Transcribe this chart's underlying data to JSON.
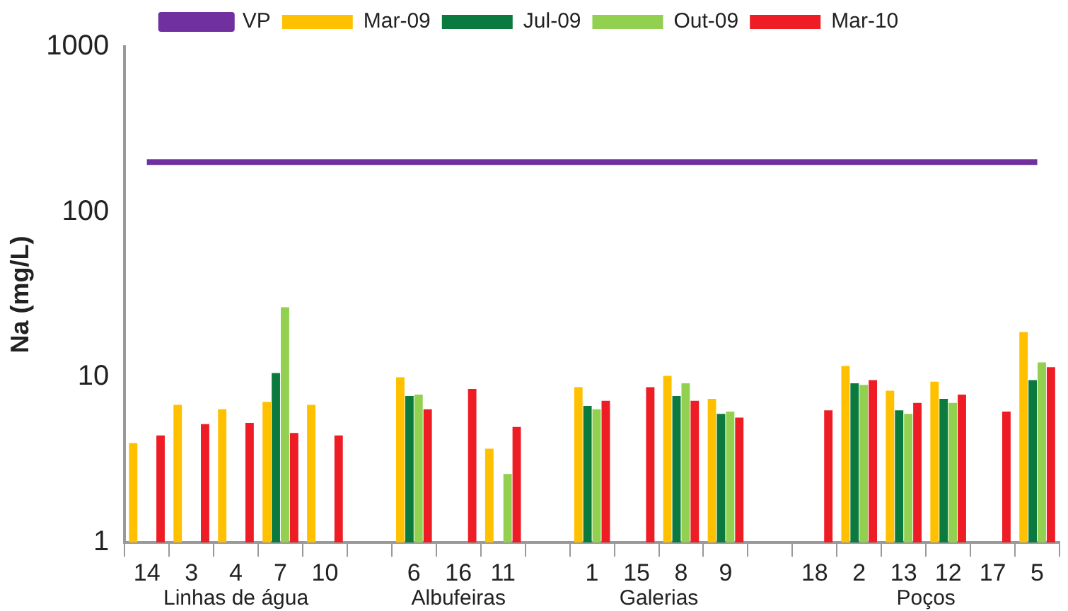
{
  "chart_data": {
    "type": "bar",
    "ylabel": "Na (mg/L)",
    "log": true,
    "ylim": [
      1,
      1000
    ],
    "yticks": [
      1,
      10,
      100,
      1000
    ],
    "legend": "top",
    "categories": [
      "14",
      "3",
      "4",
      "7",
      "10",
      null,
      "6",
      "16",
      "11",
      null,
      "1",
      "15",
      "8",
      "9",
      null,
      "18",
      "2",
      "13",
      "12",
      "17",
      "5"
    ],
    "series": [
      {
        "name": "Mar-09",
        "color": "#ffc000",
        "values": [
          4.0,
          6.8,
          6.4,
          7.1,
          6.8,
          null,
          10.0,
          null,
          3.7,
          null,
          8.7,
          null,
          10.2,
          7.4,
          null,
          null,
          11.7,
          8.3,
          9.4,
          null,
          18.8
        ]
      },
      {
        "name": "Jul-09",
        "color": "#0b7a3e",
        "values": [
          null,
          null,
          null,
          10.6,
          null,
          null,
          7.7,
          null,
          null,
          null,
          6.7,
          null,
          7.7,
          6.0,
          null,
          null,
          9.2,
          6.3,
          7.4,
          null,
          9.6
        ]
      },
      {
        "name": "Out-09",
        "color": "#92d050",
        "values": [
          null,
          null,
          null,
          26.5,
          null,
          null,
          7.85,
          null,
          2.6,
          null,
          6.4,
          null,
          9.2,
          6.2,
          null,
          null,
          9.0,
          6.0,
          7.0,
          null,
          12.3
        ]
      },
      {
        "name": "Mar-10",
        "color": "#ee1c25",
        "values": [
          4.45,
          5.2,
          5.3,
          4.6,
          4.45,
          null,
          6.4,
          8.5,
          5.0,
          null,
          7.2,
          8.7,
          7.2,
          5.7,
          null,
          6.3,
          9.6,
          7.0,
          7.85,
          6.2,
          11.5
        ]
      },
      {
        "name": "VP",
        "type": "line",
        "color": "#7030a0",
        "values": [
          200,
          200,
          200,
          200,
          200,
          200,
          200,
          200,
          200,
          200,
          200,
          200,
          200,
          200,
          200,
          200,
          200,
          200,
          200,
          200,
          200
        ]
      }
    ],
    "annotations": [
      "Linhas de água",
      "Albufeiras",
      "Galerias",
      "Poços"
    ]
  }
}
